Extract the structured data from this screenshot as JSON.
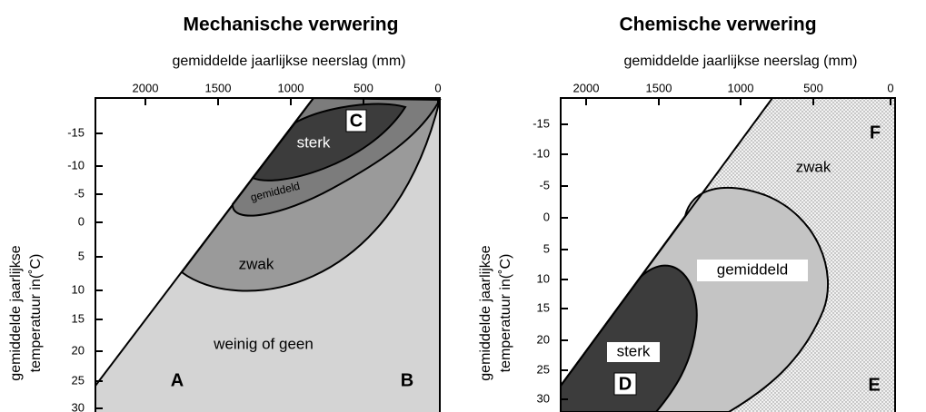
{
  "panels": [
    {
      "title": "Mechanische verwering",
      "x_label": "gemiddelde jaarlijkse neerslag (mm)",
      "x_ticks": [
        "2000",
        "1500",
        "1000",
        "500",
        "0"
      ],
      "y_label": [
        "gemiddelde jaarlijkse",
        "temperatuur in(˚C)"
      ],
      "y_ticks": [
        "-15",
        "-10",
        "-5",
        "0",
        "5",
        "10",
        "15",
        "20",
        "25",
        "30"
      ],
      "regions": {
        "sterk": "sterk",
        "gemiddeld": "gemiddeld",
        "zwak": "zwak",
        "weinig": "weinig of geen"
      },
      "corners": [
        "A",
        "B",
        "C"
      ]
    },
    {
      "title": "Chemische verwering",
      "x_label": "gemiddelde jaarlijkse neerslag (mm)",
      "x_ticks": [
        "2000",
        "1500",
        "1000",
        "500",
        "0"
      ],
      "y_label": [
        "gemiddelde jaarlijkse",
        "temperatuur in(˚C)"
      ],
      "y_ticks": [
        "-15",
        "-10",
        "-5",
        "0",
        "5",
        "10",
        "15",
        "20",
        "25",
        "30"
      ],
      "regions": {
        "zwak": "zwak",
        "gemiddeld": "gemiddeld",
        "sterk": "sterk"
      },
      "corners": [
        "D",
        "E",
        "F"
      ]
    }
  ]
}
